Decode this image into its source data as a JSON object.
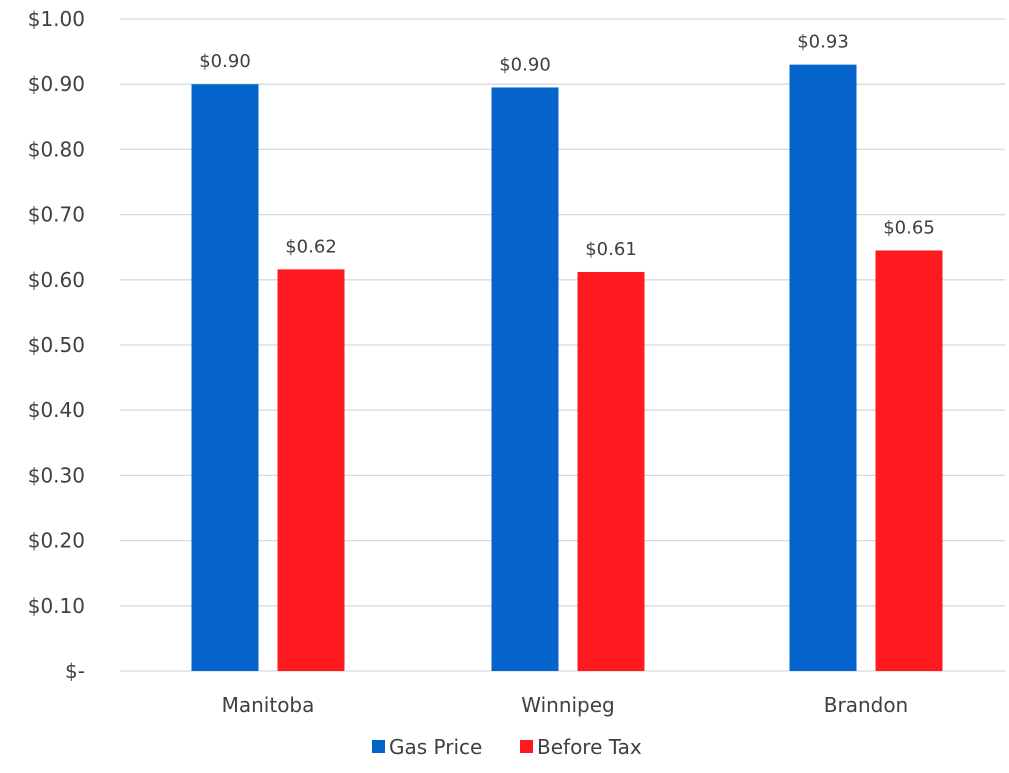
{
  "chart_data": {
    "type": "bar",
    "title": "",
    "xlabel": "",
    "ylabel": "",
    "categories": [
      "Manitoba",
      "Winnipeg",
      "Brandon"
    ],
    "series": [
      {
        "name": "Gas Price",
        "color": "#0563CC",
        "values": [
          0.9,
          0.895,
          0.93
        ],
        "labels": [
          "$0.90",
          "$0.90",
          "$0.93"
        ]
      },
      {
        "name": "Before Tax",
        "color": "#FF1A1F",
        "values": [
          0.616,
          0.612,
          0.645
        ],
        "labels": [
          "$0.62",
          "$0.61",
          "$0.65"
        ]
      }
    ],
    "ylim": [
      0,
      1.0
    ],
    "yticks": [
      0,
      0.1,
      0.2,
      0.3,
      0.4,
      0.5,
      0.6,
      0.7,
      0.8,
      0.9,
      1.0
    ],
    "ytick_labels": [
      "$-",
      "$0.10",
      "$0.20",
      "$0.30",
      "$0.40",
      "$0.50",
      "$0.60",
      "$0.70",
      "$0.80",
      "$0.90",
      "$1.00"
    ],
    "grid": true,
    "legend_position": "bottom"
  }
}
